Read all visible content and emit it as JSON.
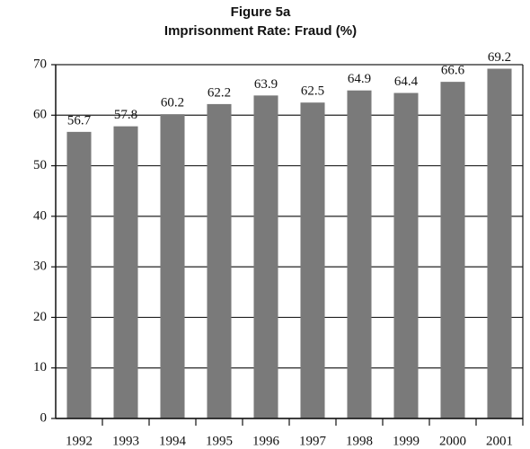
{
  "chart_data": {
    "type": "bar",
    "title": "Figure 5a",
    "subtitle": "Imprisonment Rate: Fraud (%)",
    "categories": [
      "1992",
      "1993",
      "1994",
      "1995",
      "1996",
      "1997",
      "1998",
      "1999",
      "2000",
      "2001"
    ],
    "values": [
      56.7,
      57.8,
      60.2,
      62.2,
      63.9,
      62.5,
      64.9,
      64.4,
      66.6,
      69.2
    ],
    "color": "#7a7a7a",
    "ylim": [
      0,
      70
    ],
    "yticks": [
      0,
      10,
      20,
      30,
      40,
      50,
      60,
      70
    ],
    "grid": true
  }
}
